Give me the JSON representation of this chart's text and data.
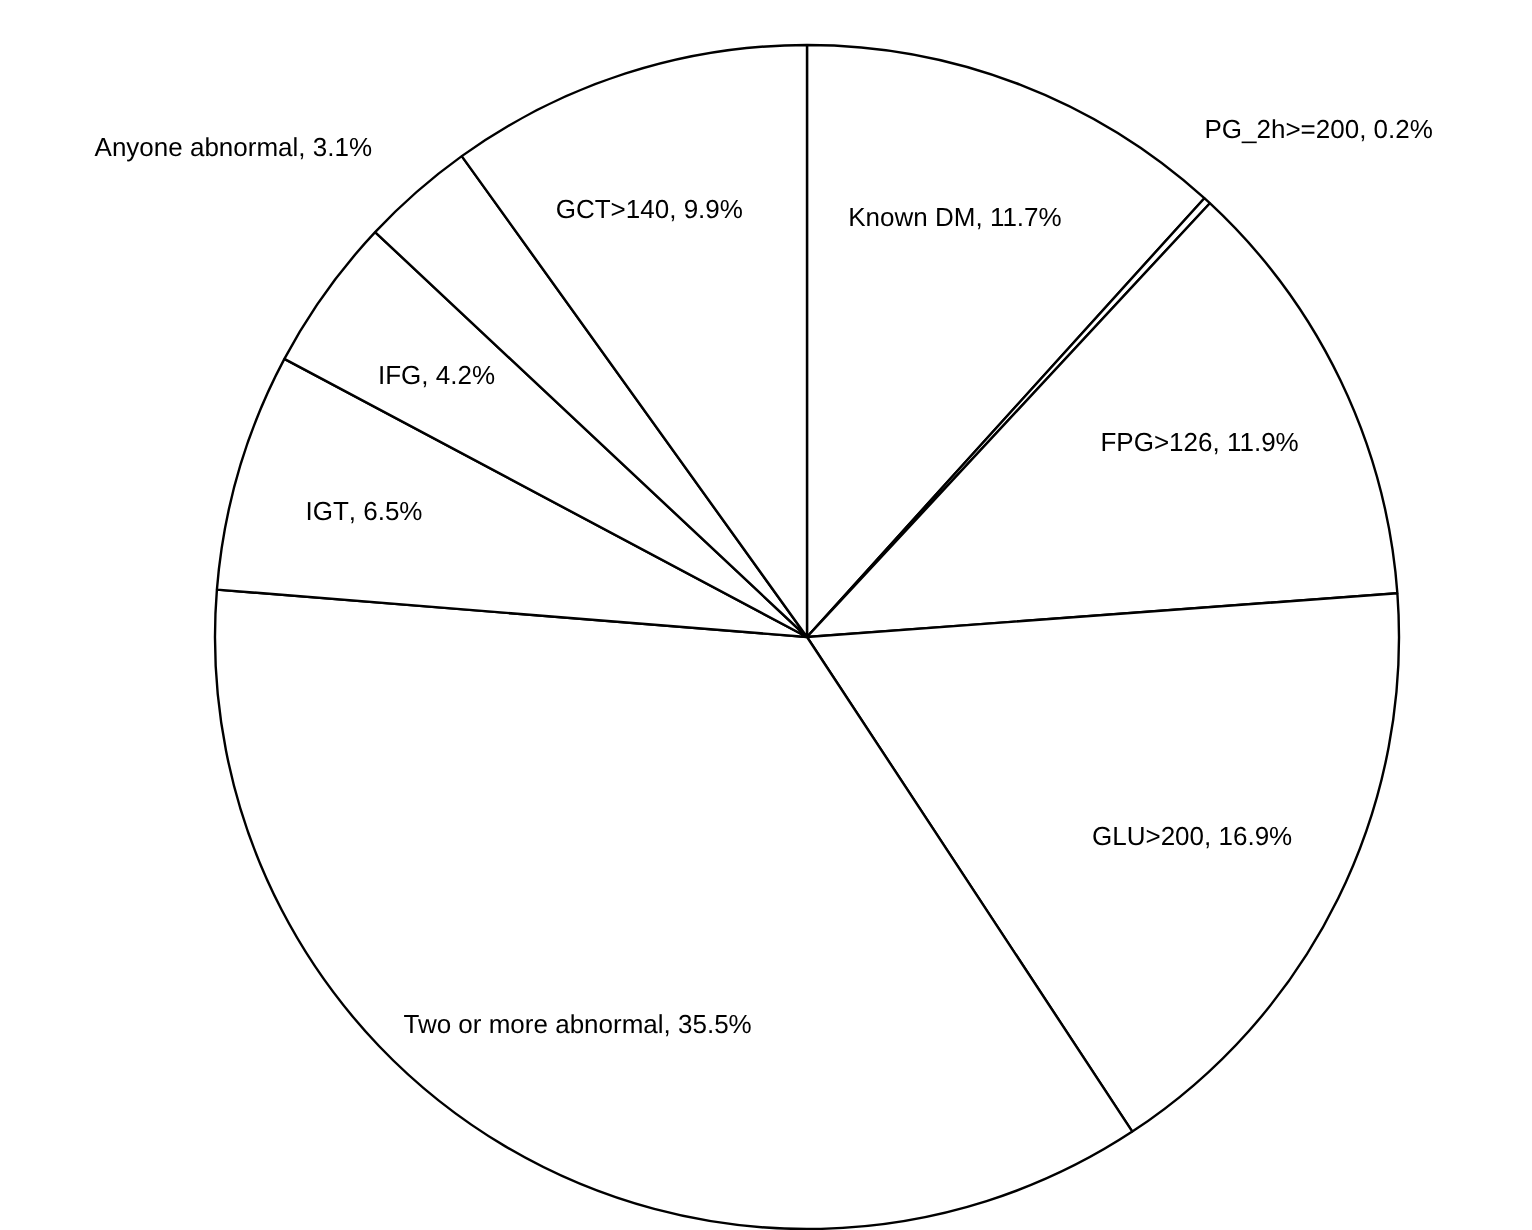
{
  "chart_data": {
    "type": "pie",
    "categories": [
      "Known DM",
      "PG_2h>=200",
      "FPG>126",
      "GLU>200",
      "Two or more abnormal",
      "IGT",
      "IFG",
      "Anyone abnormal",
      "GCT>140"
    ],
    "values": [
      11.7,
      0.2,
      11.9,
      16.9,
      35.5,
      6.5,
      4.2,
      3.1,
      9.9
    ],
    "value_labels": [
      ", 11.7%",
      ",  0.2%",
      ", 11.9%",
      ",  16.9%",
      ", 35.5%",
      ",  6.5%",
      ", 4.2%",
      ", 3.1%",
      ",  9.9%"
    ],
    "colors": [
      "#ffffff",
      "#ffffff",
      "#ffffff",
      "#ffffff",
      "#ffffff",
      "#ffffff",
      "#ffffff",
      "#ffffff",
      "#ffffff"
    ],
    "legend": false
  }
}
